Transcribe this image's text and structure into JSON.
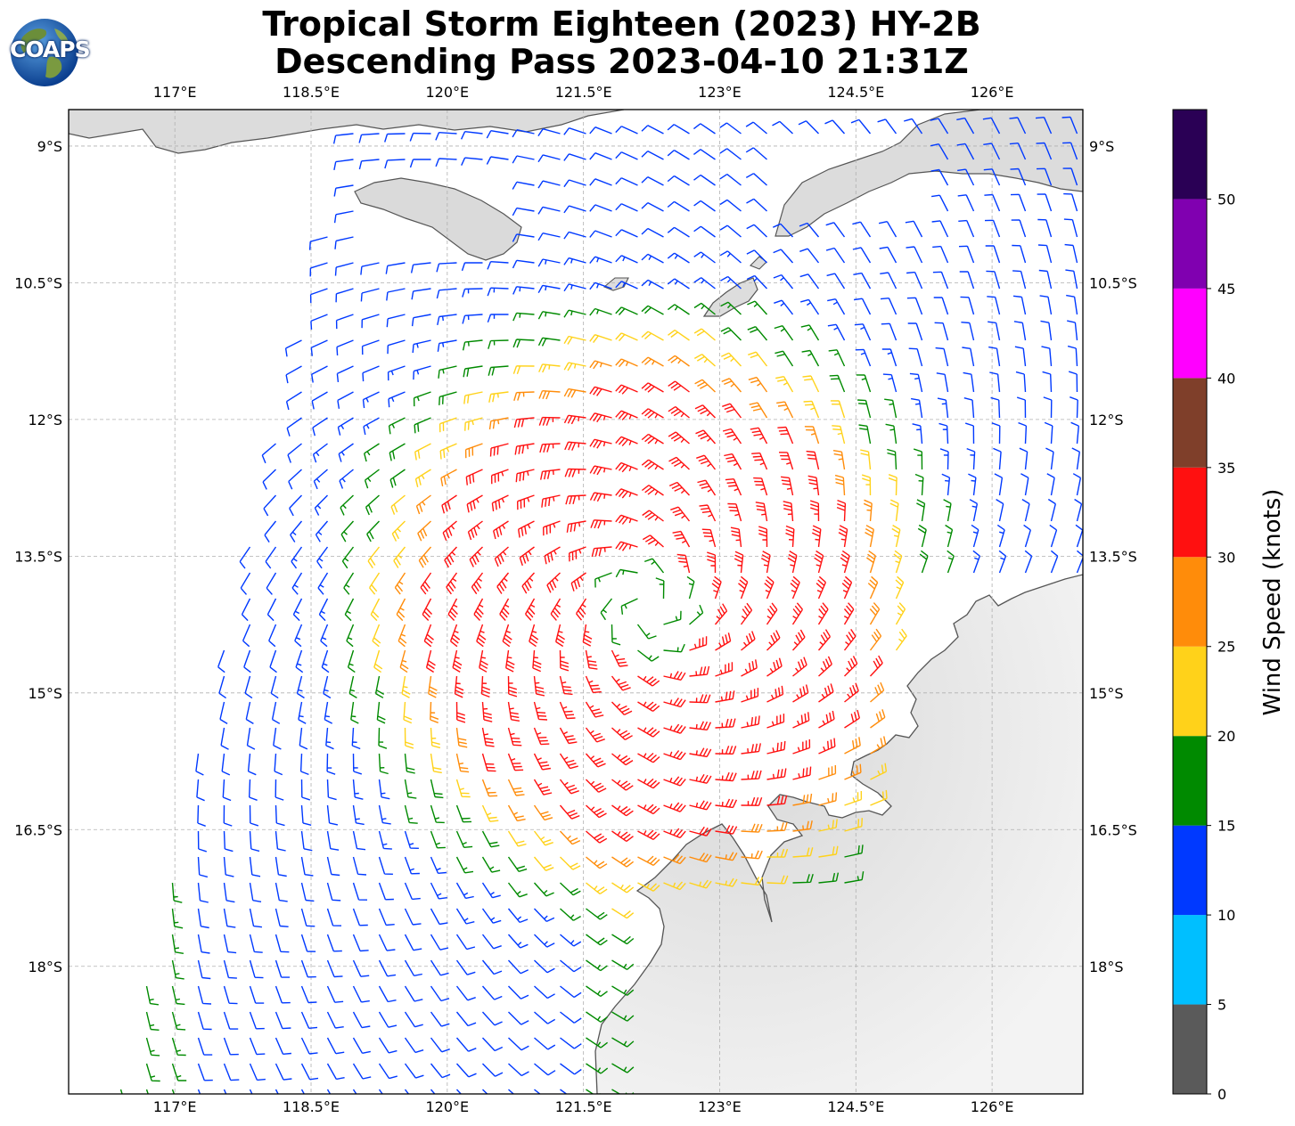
{
  "header": {
    "title_line1": "Tropical Storm Eighteen (2023) HY-2B",
    "title_line2": "Descending Pass 2023-04-10 21:31Z"
  },
  "logo": {
    "text": "COAPS",
    "icon": "coaps-globe-logo-icon"
  },
  "map": {
    "lon_labels": [
      "117°E",
      "118.5°E",
      "120°E",
      "121.5°E",
      "123°E",
      "124.5°E",
      "126°E"
    ],
    "lat_labels": [
      "9°S",
      "10.5°S",
      "12°S",
      "13.5°S",
      "15°S",
      "16.5°S",
      "18°S"
    ],
    "lon_values": [
      117,
      118.5,
      120,
      121.5,
      123,
      124.5,
      126
    ],
    "lat_values": [
      9,
      10.5,
      12,
      13.5,
      15,
      16.5,
      18
    ],
    "lon_range": [
      115.83,
      127.0
    ],
    "lat_range": [
      8.6,
      19.4
    ],
    "storm_center": {
      "lon": 122.2,
      "lat": 14.05
    },
    "colors": {
      "land_shade": "#e6e6e6",
      "coastline": "#555555",
      "grid": "#b0b0b0"
    }
  },
  "colorbar": {
    "label": "Wind Speed (knots)",
    "tick_labels": [
      "0",
      "5",
      "10",
      "15",
      "20",
      "25",
      "30",
      "35",
      "40",
      "45",
      "50"
    ],
    "bins": [
      {
        "min": 0,
        "max": 5,
        "color": "#5a5a5a"
      },
      {
        "min": 5,
        "max": 10,
        "color": "#00bfff"
      },
      {
        "min": 10,
        "max": 15,
        "color": "#0039ff"
      },
      {
        "min": 15,
        "max": 20,
        "color": "#008a00"
      },
      {
        "min": 20,
        "max": 25,
        "color": "#ffd21a"
      },
      {
        "min": 25,
        "max": 30,
        "color": "#ff8c0a"
      },
      {
        "min": 30,
        "max": 35,
        "color": "#ff1010"
      },
      {
        "min": 35,
        "max": 40,
        "color": "#7f3f2a"
      },
      {
        "min": 40,
        "max": 45,
        "color": "#ff00ff"
      },
      {
        "min": 45,
        "max": 50,
        "color": "#8000b0"
      },
      {
        "min": 50,
        "max": 55,
        "color": "#2a0055"
      }
    ]
  }
}
